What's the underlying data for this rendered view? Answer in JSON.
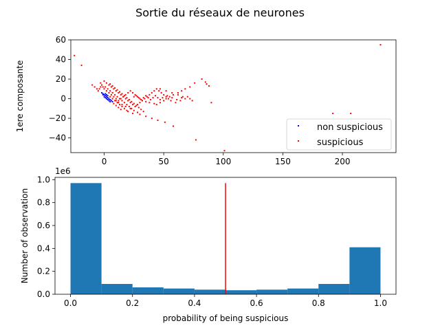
{
  "figure": {
    "suptitle": "Sortie du réseaux de neurones"
  },
  "chart_data": [
    {
      "type": "scatter",
      "title": "",
      "xlabel": "",
      "ylabel": "1ere composante",
      "xlim": [
        -28,
        245
      ],
      "ylim": [
        -55,
        60
      ],
      "xticks": [
        0,
        50,
        100,
        150,
        200
      ],
      "yticks": [
        -40,
        -20,
        0,
        20,
        40,
        60
      ],
      "grid": false,
      "legend_position": "lower-right",
      "series": [
        {
          "name": "non suspicious",
          "color": "#0000ff",
          "points": [
            [
              -2,
              6
            ],
            [
              -1,
              5
            ],
            [
              0,
              4
            ],
            [
              1,
              3
            ],
            [
              2,
              2
            ],
            [
              3,
              1
            ],
            [
              4,
              0
            ],
            [
              5,
              -1
            ],
            [
              6,
              -2
            ],
            [
              7,
              -3
            ],
            [
              0,
              2
            ],
            [
              1,
              1
            ],
            [
              2,
              0
            ],
            [
              3,
              -1
            ],
            [
              4,
              -2
            ],
            [
              5,
              -3
            ],
            [
              -1,
              4
            ],
            [
              1,
              5
            ],
            [
              2,
              4
            ],
            [
              3,
              3
            ]
          ]
        },
        {
          "name": "suspicious",
          "color": "#ff0000",
          "points": [
            [
              -25,
              44
            ],
            [
              -19,
              34
            ],
            [
              232,
              55
            ],
            [
              192,
              -15
            ],
            [
              207,
              -15
            ],
            [
              101,
              -53
            ],
            [
              77,
              -42
            ],
            [
              58,
              -28
            ],
            [
              51,
              -24
            ],
            [
              45,
              -22
            ],
            [
              40,
              -20
            ],
            [
              35,
              -18
            ],
            [
              30,
              -16
            ],
            [
              28,
              -14
            ],
            [
              25,
              -12
            ],
            [
              22,
              -10
            ],
            [
              18,
              -8
            ],
            [
              15,
              -6
            ],
            [
              12,
              -4
            ],
            [
              10,
              -2
            ],
            [
              82,
              20
            ],
            [
              85,
              17
            ],
            [
              86,
              15
            ],
            [
              88,
              13
            ],
            [
              90,
              -4
            ],
            [
              76,
              16
            ],
            [
              72,
              12
            ],
            [
              68,
              10
            ],
            [
              65,
              8
            ],
            [
              62,
              6
            ],
            [
              58,
              4
            ],
            [
              55,
              2
            ],
            [
              52,
              0
            ],
            [
              50,
              -2
            ],
            [
              47,
              -4
            ],
            [
              44,
              -6
            ],
            [
              42,
              -5
            ],
            [
              38,
              -4
            ],
            [
              35,
              -3
            ],
            [
              32,
              -2
            ],
            [
              30,
              0
            ],
            [
              28,
              2
            ],
            [
              26,
              4
            ],
            [
              24,
              6
            ],
            [
              22,
              8
            ],
            [
              20,
              6
            ],
            [
              18,
              4
            ],
            [
              16,
              2
            ],
            [
              14,
              0
            ],
            [
              12,
              -2
            ],
            [
              10,
              0
            ],
            [
              8,
              2
            ],
            [
              6,
              4
            ],
            [
              4,
              6
            ],
            [
              2,
              8
            ],
            [
              0,
              10
            ],
            [
              -1,
              12
            ],
            [
              -2,
              14
            ],
            [
              -3,
              16
            ],
            [
              0,
              18
            ],
            [
              2,
              16
            ],
            [
              4,
              14
            ],
            [
              6,
              12
            ],
            [
              8,
              10
            ],
            [
              10,
              8
            ],
            [
              12,
              6
            ],
            [
              14,
              4
            ],
            [
              16,
              2
            ],
            [
              18,
              0
            ],
            [
              20,
              -2
            ],
            [
              22,
              -4
            ],
            [
              24,
              -6
            ],
            [
              26,
              -8
            ],
            [
              28,
              -6
            ],
            [
              30,
              -4
            ],
            [
              32,
              -2
            ],
            [
              34,
              0
            ],
            [
              36,
              2
            ],
            [
              38,
              4
            ],
            [
              40,
              6
            ],
            [
              42,
              8
            ],
            [
              44,
              10
            ],
            [
              46,
              8
            ],
            [
              48,
              6
            ],
            [
              50,
              4
            ],
            [
              52,
              2
            ],
            [
              54,
              0
            ],
            [
              56,
              -2
            ],
            [
              60,
              -4
            ],
            [
              64,
              -2
            ],
            [
              68,
              0
            ],
            [
              70,
              2
            ],
            [
              -10,
              14
            ],
            [
              -8,
              12
            ],
            [
              -6,
              10
            ],
            [
              -5,
              8
            ],
            [
              -4,
              10
            ],
            [
              -3,
              12
            ],
            [
              5,
              15
            ],
            [
              7,
              13
            ],
            [
              9,
              11
            ],
            [
              11,
              9
            ],
            [
              13,
              7
            ],
            [
              15,
              5
            ],
            [
              17,
              3
            ],
            [
              19,
              1
            ],
            [
              21,
              -1
            ],
            [
              23,
              -3
            ],
            [
              25,
              -5
            ],
            [
              27,
              -7
            ],
            [
              29,
              -9
            ],
            [
              31,
              -11
            ],
            [
              33,
              -13
            ],
            [
              25,
              2
            ],
            [
              27,
              3
            ],
            [
              29,
              1
            ],
            [
              31,
              -1
            ],
            [
              33,
              1
            ],
            [
              35,
              3
            ],
            [
              37,
              1
            ],
            [
              39,
              -1
            ],
            [
              41,
              1
            ],
            [
              43,
              3
            ],
            [
              45,
              1
            ],
            [
              47,
              -1
            ],
            [
              49,
              1
            ],
            [
              53,
              3
            ],
            [
              57,
              1
            ],
            [
              61,
              -1
            ],
            [
              65,
              1
            ],
            [
              5,
              2
            ],
            [
              7,
              0
            ],
            [
              9,
              -2
            ],
            [
              11,
              -4
            ],
            [
              13,
              -6
            ],
            [
              15,
              -8
            ],
            [
              17,
              -10
            ],
            [
              19,
              -12
            ],
            [
              1,
              12
            ],
            [
              3,
              10
            ],
            [
              5,
              8
            ],
            [
              7,
              6
            ],
            [
              9,
              4
            ],
            [
              11,
              2
            ],
            [
              13,
              0
            ],
            [
              15,
              -2
            ],
            [
              17,
              -4
            ],
            [
              19,
              -6
            ],
            [
              21,
              -8
            ],
            [
              23,
              -10
            ],
            [
              8,
              -5
            ],
            [
              10,
              -7
            ],
            [
              12,
              -9
            ],
            [
              14,
              -11
            ],
            [
              20,
              -13
            ],
            [
              24,
              -15
            ],
            [
              47,
              10
            ],
            [
              52,
              8
            ],
            [
              57,
              6
            ],
            [
              62,
              4
            ],
            [
              66,
              2
            ],
            [
              72,
              0
            ],
            [
              74,
              -2
            ]
          ]
        }
      ]
    },
    {
      "type": "bar",
      "title": "",
      "xlabel": "probability of being suspicious",
      "ylabel": "Number of observation",
      "offset_label": "1e6",
      "xlim": [
        -0.05,
        1.05
      ],
      "ylim": [
        0,
        1.02
      ],
      "xticks": [
        "0.0",
        "0.2",
        "0.4",
        "0.6",
        "0.8",
        "1.0"
      ],
      "yticks": [
        "0.0",
        "0.2",
        "0.4",
        "0.6",
        "0.8",
        "1.0"
      ],
      "grid": false,
      "bar_color": "#1f77b4",
      "bins": [
        [
          0.0,
          0.1
        ],
        [
          0.1,
          0.2
        ],
        [
          0.2,
          0.3
        ],
        [
          0.3,
          0.4
        ],
        [
          0.4,
          0.5
        ],
        [
          0.5,
          0.6
        ],
        [
          0.6,
          0.7
        ],
        [
          0.7,
          0.8
        ],
        [
          0.8,
          0.9
        ],
        [
          0.9,
          1.0
        ]
      ],
      "values": [
        0.97,
        0.09,
        0.06,
        0.05,
        0.04,
        0.035,
        0.04,
        0.05,
        0.09,
        0.41
      ],
      "threshold": {
        "x": 0.5,
        "y_top": 0.97,
        "color": "#ff0000"
      }
    }
  ]
}
